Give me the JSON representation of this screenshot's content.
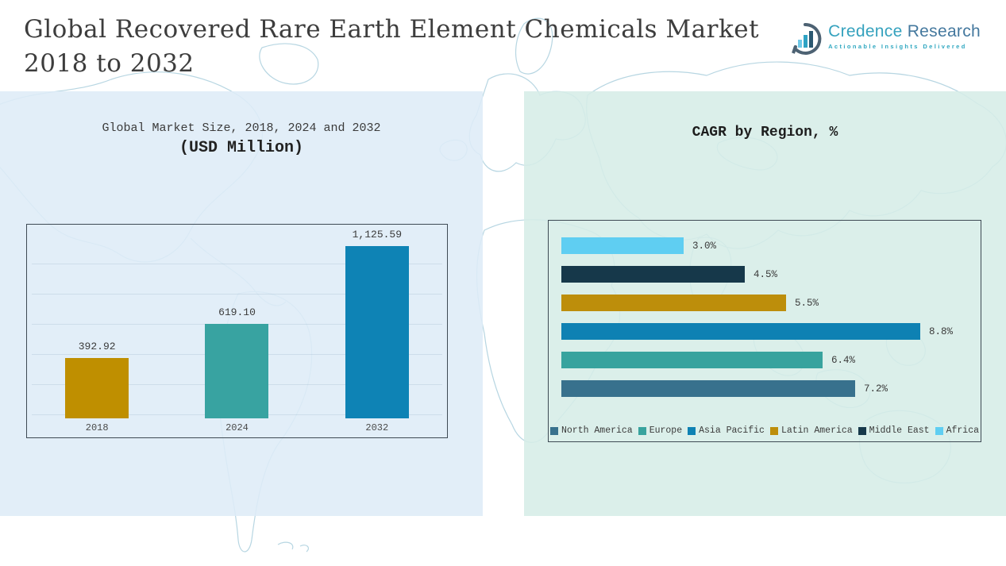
{
  "header": {
    "title_line1": "Global Recovered Rare Earth Element Chemicals Market",
    "title_line2": "2018 to 2032"
  },
  "logo": {
    "word1": "Credence",
    "word2": "Research",
    "tagline": "Actionable Insights Delivered",
    "icon": "bar-chart-in-circle-icon",
    "colors": {
      "word1": "#35a2be",
      "word2": "#44789e",
      "tagline": "#2fa7c0",
      "circle": "#4d6273"
    }
  },
  "chart_data": [
    {
      "type": "bar",
      "title": "Global Market Size, 2018, 2024 and 2032",
      "subtitle": "(USD Million)",
      "categories": [
        "2018",
        "2024",
        "2032"
      ],
      "values": [
        392.92,
        619.1,
        1125.59
      ],
      "value_labels": [
        "392.92",
        "619.10",
        "1,125.59"
      ],
      "colors": [
        "#BF8F00",
        "#38A3A1",
        "#0E83B5"
      ],
      "xlabel": "",
      "ylabel": "USD Million",
      "ylim": [
        0,
        1200
      ],
      "grid": true,
      "legend_position": "none"
    },
    {
      "type": "bar",
      "orientation": "horizontal",
      "title": "CAGR by Region, %",
      "categories": [
        "Africa",
        "Middle East",
        "Latin America",
        "Asia Pacific",
        "Europe",
        "North America"
      ],
      "values": [
        3.0,
        4.5,
        5.5,
        8.8,
        6.4,
        7.2
      ],
      "value_labels": [
        "3.0%",
        "4.5%",
        "5.5%",
        "8.8%",
        "6.4%",
        "7.2%"
      ],
      "colors": [
        "#5FCEF2",
        "#16384A",
        "#BD8E0B",
        "#0E81B3",
        "#38A39E",
        "#38718D"
      ],
      "xlabel": "CAGR %",
      "ylabel": "",
      "xlim": [
        0,
        9
      ],
      "grid": false,
      "legend_position": "bottom",
      "legend": [
        {
          "label": "North America",
          "color": "#38718D"
        },
        {
          "label": "Europe",
          "color": "#38A39E"
        },
        {
          "label": "Asia Pacific",
          "color": "#0E81B3"
        },
        {
          "label": "Latin America",
          "color": "#BD8E0B"
        },
        {
          "label": "Middle East",
          "color": "#16384A"
        },
        {
          "label": "Africa",
          "color": "#5FCEF2"
        }
      ]
    }
  ]
}
